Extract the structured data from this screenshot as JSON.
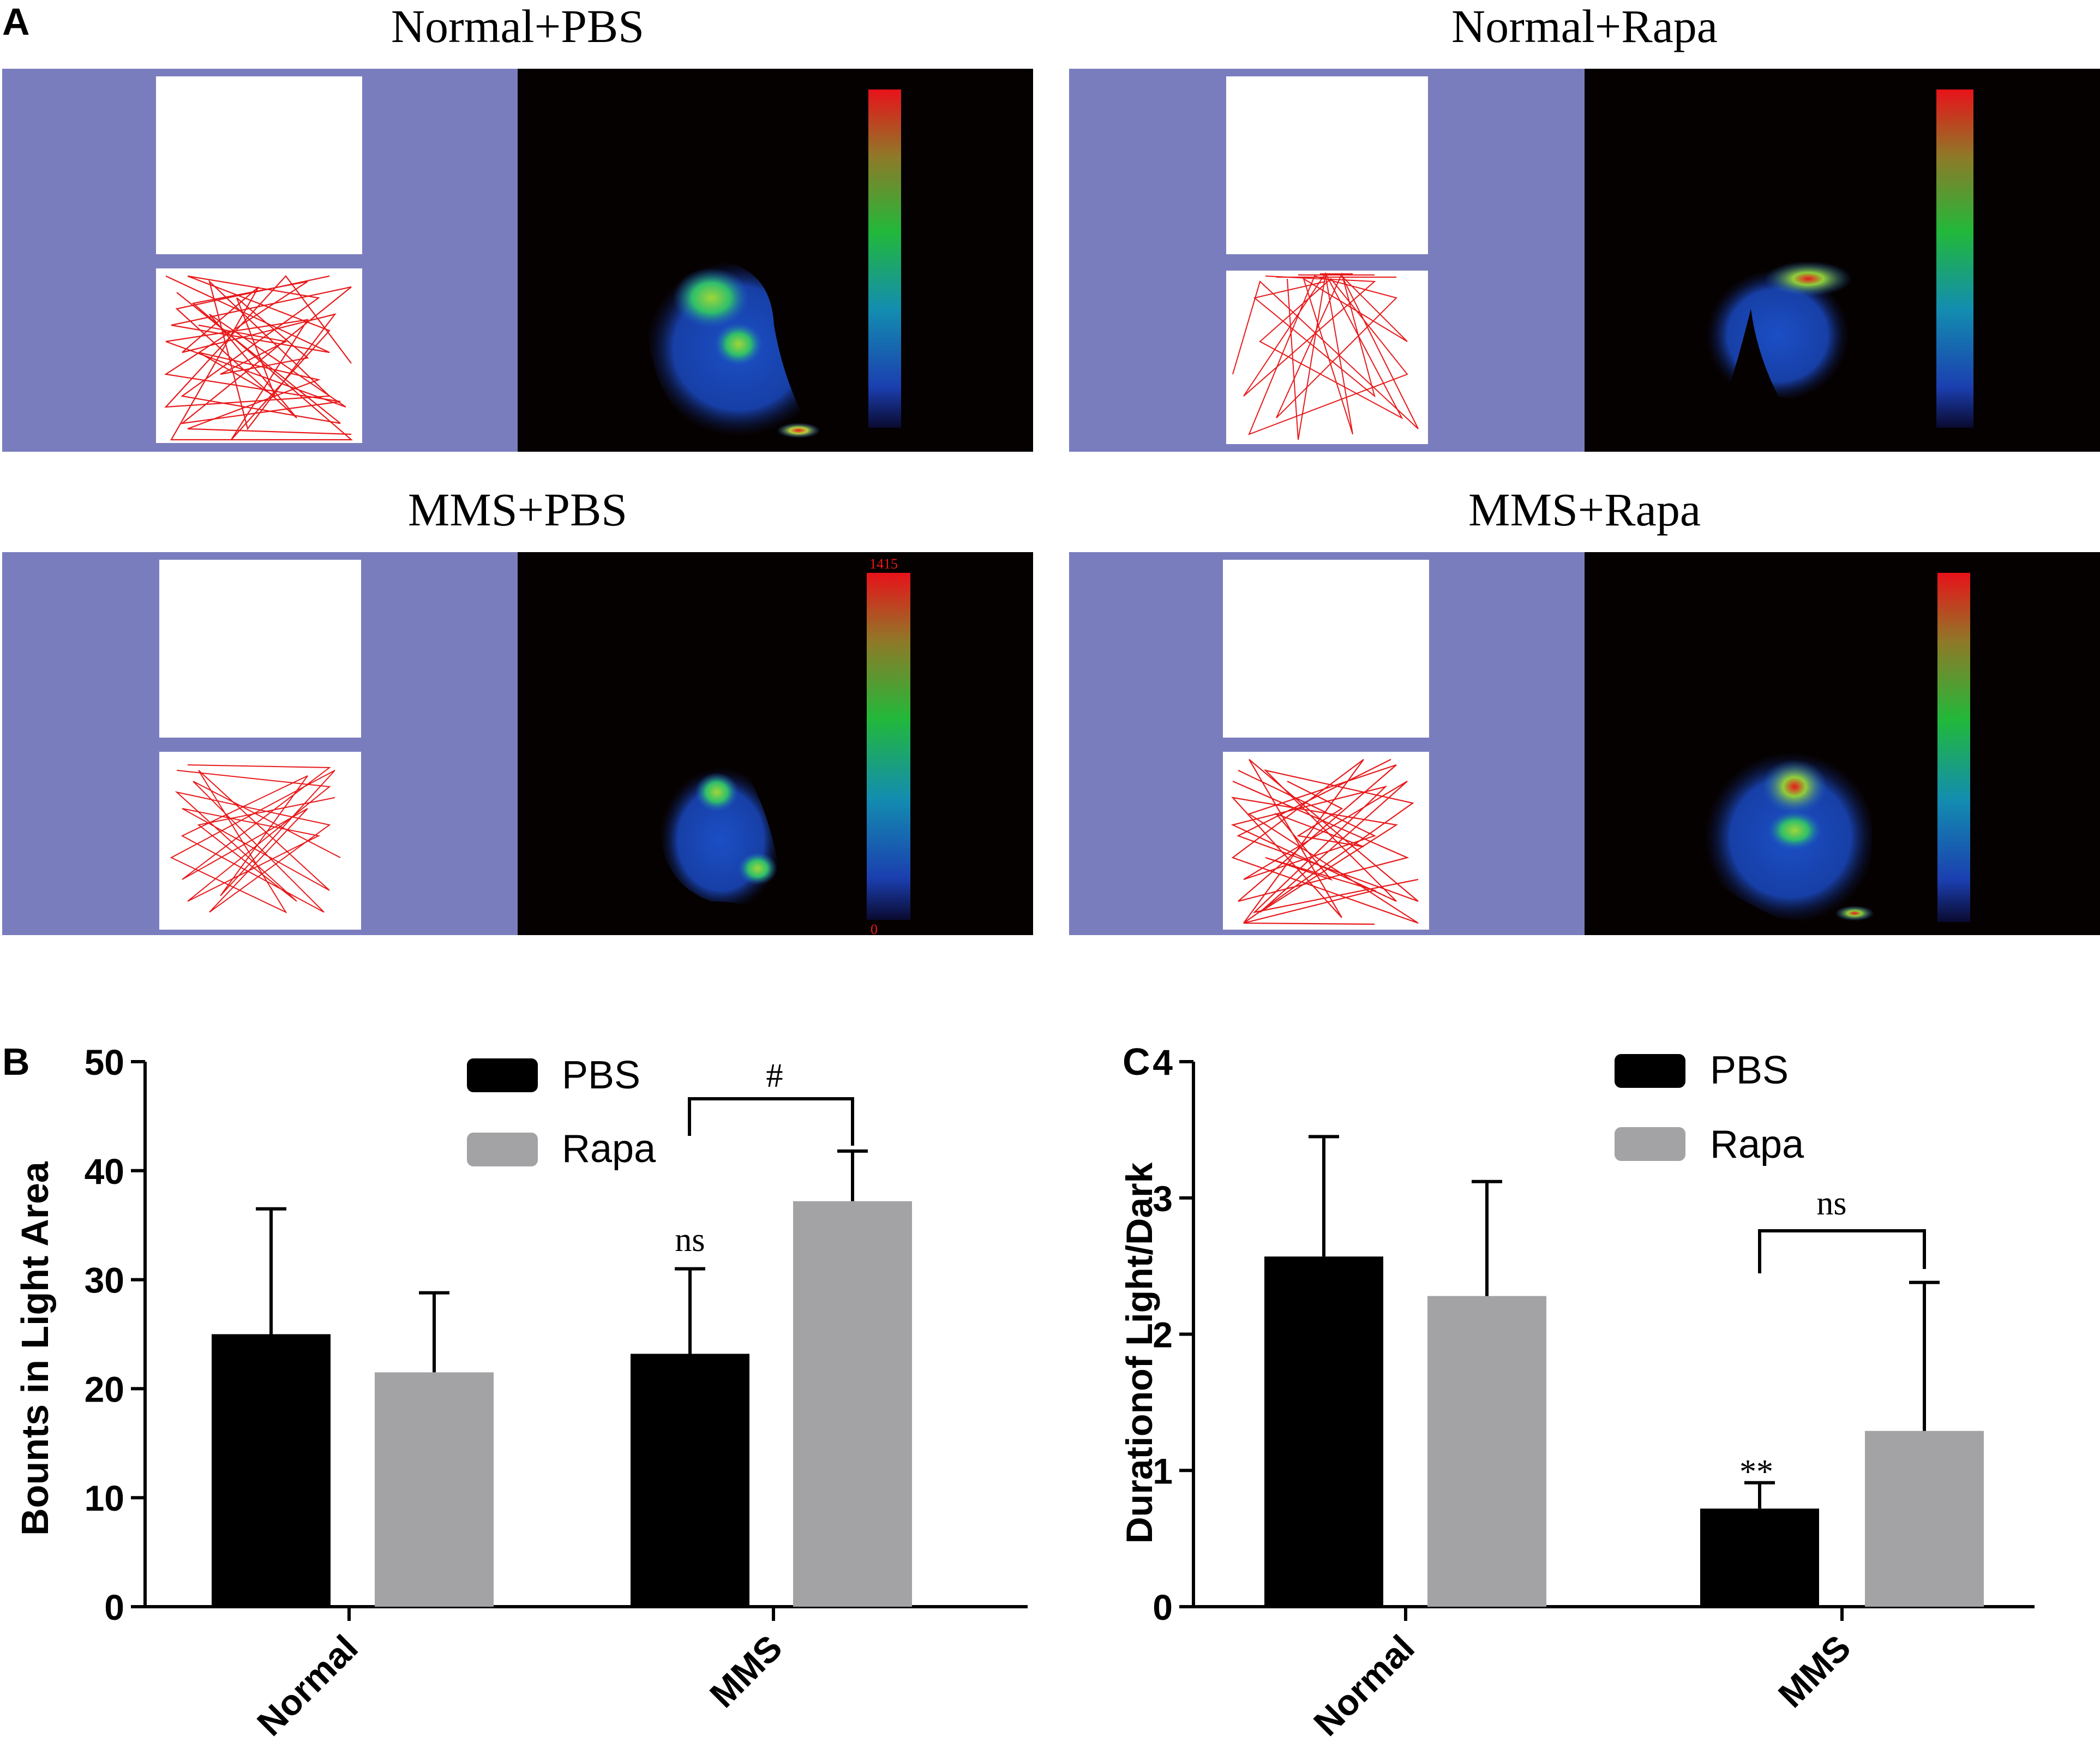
{
  "panel_a": {
    "label": "A",
    "tiles": [
      {
        "title": "Normal+PBS"
      },
      {
        "title": "Normal+Rapa"
      },
      {
        "title": "MMS+PBS",
        "scale_max_label": "1415",
        "scale_min_label": "0"
      },
      {
        "title": "MMS+Rapa"
      }
    ]
  },
  "colors": {
    "tile_background": "#7a7dbd",
    "heatmap_background": "#060101",
    "track_color": "#e8191b",
    "pbs_bar": "#000000",
    "rapa_bar": "#a3a3a6"
  },
  "chart_data": [
    {
      "panel": "B",
      "type": "bar",
      "categories": [
        "Normal",
        "MMS"
      ],
      "series": [
        {
          "name": "PBS",
          "values": [
            25,
            23.2
          ],
          "errors": [
            11.5,
            7.8
          ]
        },
        {
          "name": "Rapa",
          "values": [
            21.5,
            37.2
          ],
          "errors": [
            7.3,
            4.6
          ]
        }
      ],
      "ylabel": "Bounts in Light Area",
      "ylim": [
        0,
        50
      ],
      "yticks": [
        "0",
        "10",
        "20",
        "30",
        "40",
        "50"
      ],
      "legend_placement": "top-center",
      "annotations": [
        {
          "text": "ns",
          "target": "MMS PBS"
        },
        {
          "text": "#",
          "target": "MMS PBS vs Rapa"
        }
      ]
    },
    {
      "panel": "C",
      "type": "bar",
      "categories": [
        "Normal",
        "MMS"
      ],
      "series": [
        {
          "name": "PBS",
          "values": [
            2.57,
            0.72
          ],
          "errors": [
            0.88,
            0.19
          ]
        },
        {
          "name": "Rapa",
          "values": [
            2.28,
            1.29
          ],
          "errors": [
            0.84,
            1.09
          ]
        }
      ],
      "ylabel": "Durationof  Light/Dark",
      "ylim": [
        0,
        4
      ],
      "yticks": [
        "0",
        "1",
        "2",
        "3",
        "4"
      ],
      "legend_placement": "top-center",
      "annotations": [
        {
          "text": "**",
          "target": "MMS PBS"
        },
        {
          "text": "ns",
          "target": "MMS PBS vs Rapa"
        }
      ]
    }
  ]
}
